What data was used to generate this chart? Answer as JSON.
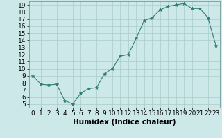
{
  "x": [
    0,
    1,
    2,
    3,
    4,
    5,
    6,
    7,
    8,
    9,
    10,
    11,
    12,
    13,
    14,
    15,
    16,
    17,
    18,
    19,
    20,
    21,
    22,
    23
  ],
  "y": [
    9.0,
    7.8,
    7.7,
    7.8,
    5.5,
    5.0,
    6.5,
    7.2,
    7.3,
    9.3,
    10.0,
    11.8,
    12.0,
    14.3,
    16.8,
    17.2,
    18.3,
    18.8,
    19.0,
    19.2,
    18.5,
    18.5,
    17.2,
    13.3
  ],
  "line_color": "#2e7d6e",
  "marker": "*",
  "marker_color": "#2e7d6e",
  "bg_color": "#cce8e8",
  "grid_color": "#aacccc",
  "xlabel": "Humidex (Indice chaleur)",
  "xlim": [
    -0.5,
    23.5
  ],
  "ylim": [
    4.5,
    19.5
  ],
  "yticks": [
    5,
    6,
    7,
    8,
    9,
    10,
    11,
    12,
    13,
    14,
    15,
    16,
    17,
    18,
    19
  ],
  "xticks": [
    0,
    1,
    2,
    3,
    4,
    5,
    6,
    7,
    8,
    9,
    10,
    11,
    12,
    13,
    14,
    15,
    16,
    17,
    18,
    19,
    20,
    21,
    22,
    23
  ],
  "tick_fontsize": 6.5,
  "label_fontsize": 7.5
}
